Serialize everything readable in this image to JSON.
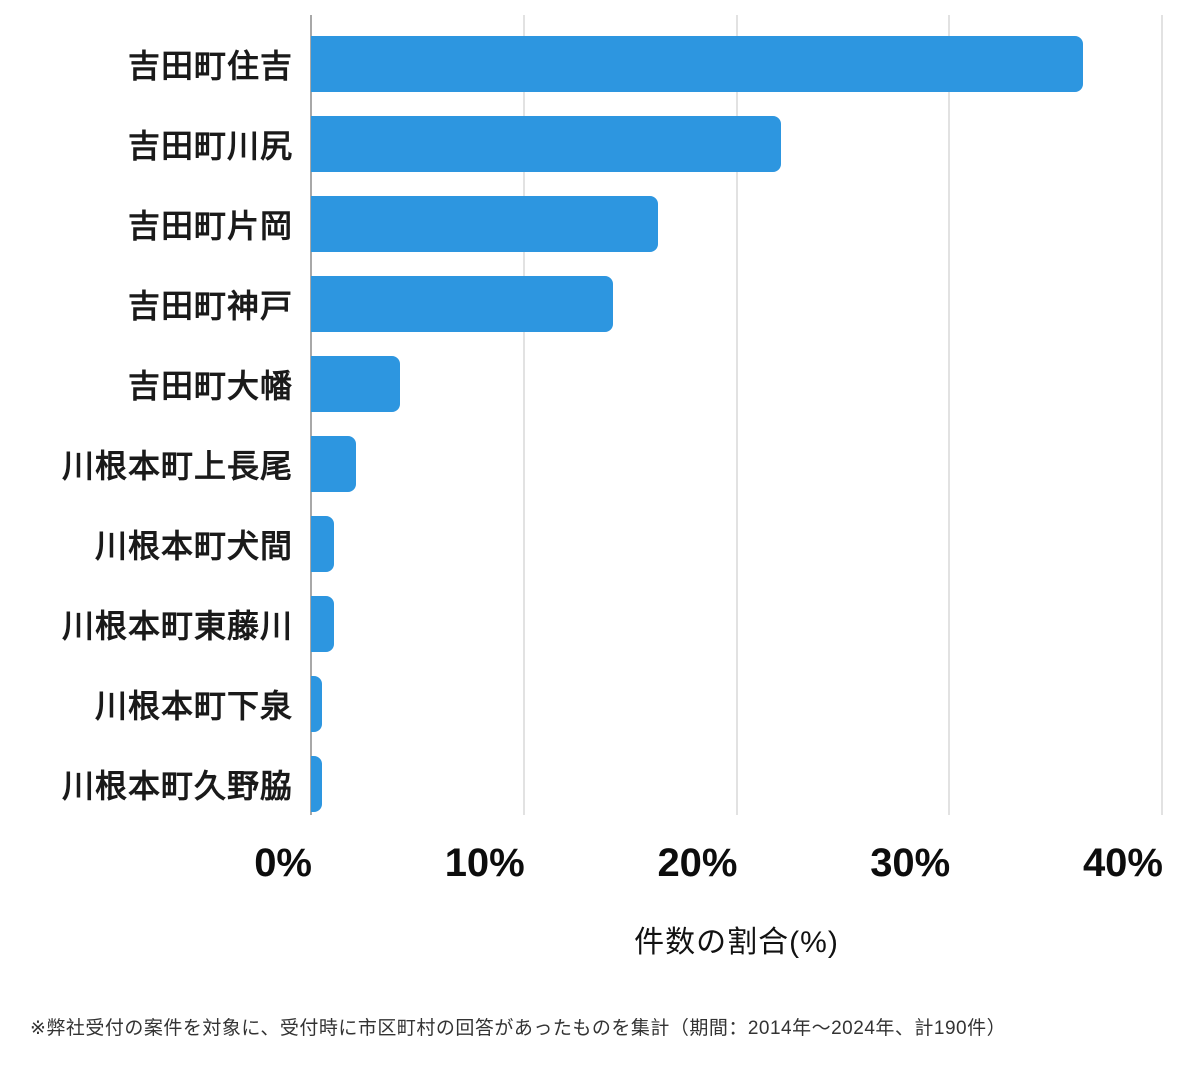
{
  "chart_data": {
    "type": "bar",
    "orientation": "horizontal",
    "title": "",
    "xlabel": "件数の割合(%)",
    "ylabel": "",
    "categories": [
      "吉田町住吉",
      "吉田町川尻",
      "吉田町片岡",
      "吉田町神戸",
      "吉田町大幡",
      "川根本町上長尾",
      "川根本町犬間",
      "川根本町東藤川",
      "川根本町下泉",
      "川根本町久野脇"
    ],
    "values": [
      36.3,
      22.1,
      16.3,
      14.2,
      4.2,
      2.1,
      1.1,
      1.1,
      0.5,
      0.5
    ],
    "xlim": [
      0,
      40
    ],
    "xticks": [
      0,
      10,
      20,
      30,
      40
    ],
    "xtick_labels": [
      "0%",
      "10%",
      "20%",
      "30%",
      "40%"
    ],
    "grid": true,
    "legend": false,
    "bar_color": "#2D96E0"
  },
  "footnote": "※弊社受付の案件を対象に、受付時に市区町村の回答があったものを集計（期間：2014年〜2024年、計190件）",
  "colors": {
    "bar": "#2D96E0",
    "gridline": "#e2e2e2",
    "axis_line": "#a8a8a8",
    "text": "#1a1a1a",
    "footnote_text": "#333333",
    "background": "#ffffff"
  }
}
